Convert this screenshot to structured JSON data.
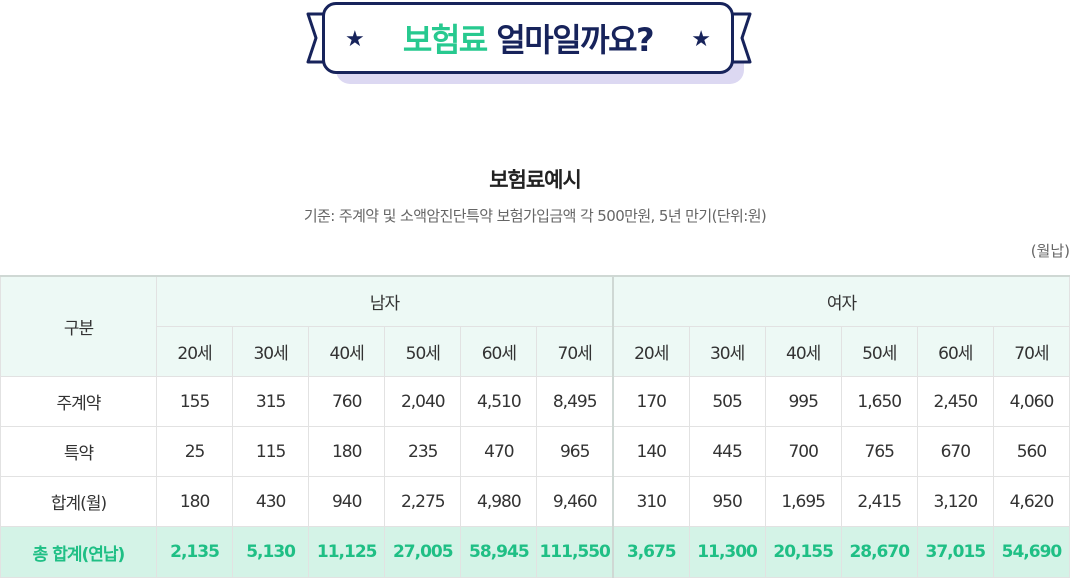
{
  "banner": {
    "highlight": "보험료",
    "rest": " 얼마일까요?",
    "star": "★"
  },
  "title": "보험료예시",
  "subtitle": "기준: 주계약 및 소액암진단특약 보험가입금액 각 500만원, 5년 만기(단위:원)",
  "unit": "(월납)",
  "table": {
    "corner": "구분",
    "groups": [
      "남자",
      "여자"
    ],
    "ages": [
      "20세",
      "30세",
      "40세",
      "50세",
      "60세",
      "70세",
      "20세",
      "30세",
      "40세",
      "50세",
      "60세",
      "70세"
    ],
    "rows": [
      {
        "label": "주계약",
        "cells": [
          "155",
          "315",
          "760",
          "2,040",
          "4,510",
          "8,495",
          "170",
          "505",
          "995",
          "1,650",
          "2,450",
          "4,060"
        ]
      },
      {
        "label": "특약",
        "cells": [
          "25",
          "115",
          "180",
          "235",
          "470",
          "965",
          "140",
          "445",
          "700",
          "765",
          "670",
          "560"
        ]
      },
      {
        "label": "합계(월)",
        "cells": [
          "180",
          "430",
          "940",
          "2,275",
          "4,980",
          "9,460",
          "310",
          "950",
          "1,695",
          "2,415",
          "3,120",
          "4,620"
        ]
      }
    ],
    "total": {
      "label": "총 합계(연납)",
      "cells": [
        "2,135",
        "5,130",
        "11,125",
        "27,005",
        "58,945",
        "111,550",
        "3,675",
        "11,300",
        "20,155",
        "28,670",
        "37,015",
        "54,690"
      ]
    }
  },
  "colors": {
    "navy": "#17235b",
    "green": "#27c98f",
    "header_bg": "#edf9f5",
    "total_bg": "#d4f3e7"
  }
}
